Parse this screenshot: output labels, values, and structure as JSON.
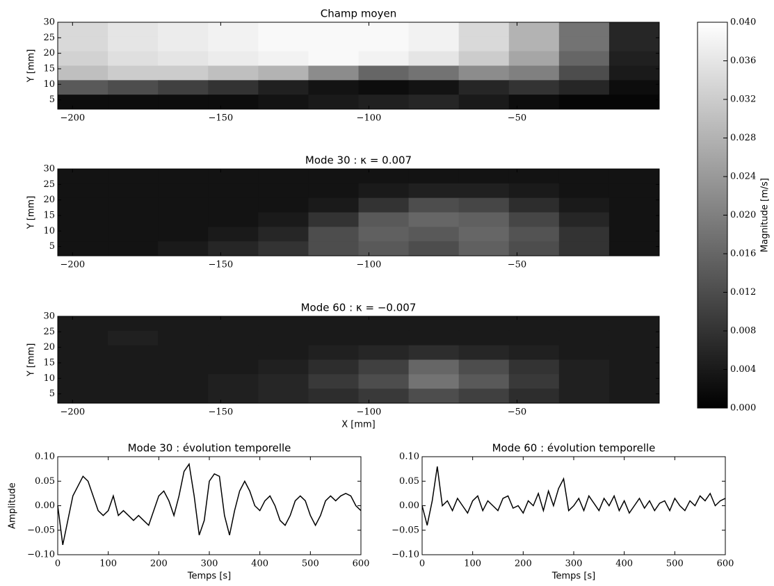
{
  "chart_data": [
    {
      "type": "heatmap",
      "title": "Champ moyen",
      "ylabel": "Y [mm]",
      "xlim": [
        -205,
        -2
      ],
      "ylim": [
        2,
        30
      ],
      "xticks": [
        {
          "value": -200,
          "label": "−200"
        },
        {
          "value": -150,
          "label": "−150"
        },
        {
          "value": -100,
          "label": "−100"
        },
        {
          "value": -50,
          "label": "−50"
        }
      ],
      "yticks": [
        5,
        10,
        15,
        20,
        25,
        30
      ],
      "z": [
        [
          0.034,
          0.036,
          0.037,
          0.038,
          0.039,
          0.039,
          0.039,
          0.038,
          0.034,
          0.028,
          0.018,
          0.006
        ],
        [
          0.034,
          0.036,
          0.037,
          0.038,
          0.039,
          0.039,
          0.039,
          0.038,
          0.034,
          0.028,
          0.018,
          0.006
        ],
        [
          0.033,
          0.035,
          0.036,
          0.037,
          0.038,
          0.039,
          0.038,
          0.036,
          0.032,
          0.026,
          0.016,
          0.005
        ],
        [
          0.03,
          0.032,
          0.032,
          0.03,
          0.028,
          0.022,
          0.016,
          0.018,
          0.022,
          0.02,
          0.012,
          0.004
        ],
        [
          0.014,
          0.012,
          0.01,
          0.008,
          0.005,
          0.003,
          0.002,
          0.003,
          0.006,
          0.008,
          0.006,
          0.002
        ],
        [
          0.002,
          0.002,
          0.002,
          0.002,
          0.003,
          0.004,
          0.005,
          0.006,
          0.004,
          0.002,
          0.001,
          0.001
        ]
      ]
    },
    {
      "type": "heatmap",
      "title": "Mode 30 : κ = 0.007",
      "ylabel": "Y [mm]",
      "xlim": [
        -205,
        -2
      ],
      "ylim": [
        2,
        30
      ],
      "xticks": [
        {
          "value": -200,
          "label": "−200"
        },
        {
          "value": -150,
          "label": "−150"
        },
        {
          "value": -100,
          "label": "−100"
        },
        {
          "value": -50,
          "label": "−50"
        }
      ],
      "yticks": [
        5,
        10,
        15,
        20,
        25,
        30
      ],
      "z": [
        [
          0.003,
          0.003,
          0.003,
          0.003,
          0.003,
          0.003,
          0.003,
          0.003,
          0.003,
          0.003,
          0.003,
          0.003
        ],
        [
          0.003,
          0.003,
          0.003,
          0.003,
          0.003,
          0.003,
          0.004,
          0.005,
          0.005,
          0.004,
          0.003,
          0.003
        ],
        [
          0.003,
          0.003,
          0.003,
          0.003,
          0.003,
          0.004,
          0.008,
          0.012,
          0.011,
          0.007,
          0.004,
          0.003
        ],
        [
          0.003,
          0.003,
          0.003,
          0.003,
          0.004,
          0.008,
          0.014,
          0.016,
          0.015,
          0.011,
          0.006,
          0.003
        ],
        [
          0.003,
          0.003,
          0.003,
          0.004,
          0.006,
          0.012,
          0.015,
          0.014,
          0.016,
          0.013,
          0.008,
          0.003
        ],
        [
          0.003,
          0.003,
          0.004,
          0.006,
          0.008,
          0.012,
          0.014,
          0.012,
          0.015,
          0.012,
          0.008,
          0.003
        ]
      ]
    },
    {
      "type": "heatmap",
      "title": "Mode 60 : κ = −0.007",
      "ylabel": "Y [mm]",
      "xlabel": "X [mm]",
      "xlim": [
        -205,
        -2
      ],
      "ylim": [
        2,
        30
      ],
      "xticks": [
        {
          "value": -200,
          "label": "−200"
        },
        {
          "value": -150,
          "label": "−150"
        },
        {
          "value": -100,
          "label": "−100"
        },
        {
          "value": -50,
          "label": "−50"
        }
      ],
      "yticks": [
        5,
        10,
        15,
        20,
        25,
        30
      ],
      "z": [
        [
          0.004,
          0.004,
          0.004,
          0.004,
          0.004,
          0.004,
          0.004,
          0.004,
          0.004,
          0.004,
          0.004,
          0.004
        ],
        [
          0.004,
          0.005,
          0.004,
          0.004,
          0.004,
          0.004,
          0.004,
          0.004,
          0.004,
          0.004,
          0.004,
          0.004
        ],
        [
          0.004,
          0.004,
          0.004,
          0.004,
          0.004,
          0.005,
          0.006,
          0.007,
          0.006,
          0.005,
          0.004,
          0.004
        ],
        [
          0.004,
          0.004,
          0.004,
          0.004,
          0.005,
          0.007,
          0.01,
          0.016,
          0.012,
          0.008,
          0.005,
          0.004
        ],
        [
          0.004,
          0.004,
          0.004,
          0.005,
          0.006,
          0.009,
          0.012,
          0.018,
          0.014,
          0.009,
          0.005,
          0.004
        ],
        [
          0.004,
          0.004,
          0.004,
          0.005,
          0.006,
          0.007,
          0.009,
          0.012,
          0.01,
          0.007,
          0.005,
          0.004
        ]
      ]
    },
    {
      "type": "colorbar",
      "label": "Magnitude [m/s]",
      "lim": [
        0,
        0.04
      ],
      "ticks": [
        {
          "value": 0,
          "label": "0.000"
        },
        {
          "value": 0.004,
          "label": "0.004"
        },
        {
          "value": 0.008,
          "label": "0.008"
        },
        {
          "value": 0.012,
          "label": "0.012"
        },
        {
          "value": 0.016,
          "label": "0.016"
        },
        {
          "value": 0.02,
          "label": "0.020"
        },
        {
          "value": 0.024,
          "label": "0.024"
        },
        {
          "value": 0.028,
          "label": "0.028"
        },
        {
          "value": 0.032,
          "label": "0.032"
        },
        {
          "value": 0.036,
          "label": "0.036"
        },
        {
          "value": 0.04,
          "label": "0.040"
        }
      ]
    },
    {
      "type": "line",
      "title": "Mode 30 : évolution temporelle",
      "xlabel": "Temps [s]",
      "ylabel": "Amplitude",
      "color": "#000000",
      "xlim": [
        0,
        600
      ],
      "ylim": [
        -0.1,
        0.1
      ],
      "xticks": [
        0,
        100,
        200,
        300,
        400,
        500,
        600
      ],
      "yticks": [
        {
          "value": -0.1,
          "label": "−0.10"
        },
        {
          "value": -0.05,
          "label": "−0.05"
        },
        {
          "value": 0,
          "label": "0.00"
        },
        {
          "value": 0.05,
          "label": "0.05"
        },
        {
          "value": 0.1,
          "label": "0.10"
        }
      ],
      "x": [
        0,
        10,
        20,
        30,
        40,
        50,
        60,
        70,
        80,
        90,
        100,
        110,
        120,
        130,
        140,
        150,
        160,
        170,
        180,
        190,
        200,
        210,
        220,
        230,
        240,
        250,
        260,
        270,
        280,
        290,
        300,
        310,
        320,
        330,
        340,
        350,
        360,
        370,
        380,
        390,
        400,
        410,
        420,
        430,
        440,
        450,
        460,
        470,
        480,
        490,
        500,
        510,
        520,
        530,
        540,
        550,
        560,
        570,
        580,
        590,
        600
      ],
      "values": [
        0.0,
        -0.08,
        -0.03,
        0.02,
        0.04,
        0.06,
        0.05,
        0.02,
        -0.01,
        -0.02,
        -0.01,
        0.02,
        -0.02,
        -0.01,
        -0.02,
        -0.03,
        -0.02,
        -0.03,
        -0.04,
        -0.01,
        0.02,
        0.03,
        0.01,
        -0.02,
        0.02,
        0.07,
        0.085,
        0.02,
        -0.06,
        -0.03,
        0.05,
        0.065,
        0.06,
        -0.02,
        -0.06,
        -0.01,
        0.03,
        0.05,
        0.03,
        0.0,
        -0.01,
        0.01,
        0.02,
        0.0,
        -0.03,
        -0.04,
        -0.02,
        0.01,
        0.02,
        0.01,
        -0.02,
        -0.04,
        -0.02,
        0.01,
        0.02,
        0.01,
        0.02,
        0.025,
        0.02,
        0.0,
        -0.01
      ]
    },
    {
      "type": "line",
      "title": "Mode 60 : évolution temporelle",
      "xlabel": "Temps [s]",
      "color": "#000000",
      "xlim": [
        0,
        600
      ],
      "ylim": [
        -0.1,
        0.1
      ],
      "xticks": [
        0,
        100,
        200,
        300,
        400,
        500,
        600
      ],
      "yticks": [
        {
          "value": -0.1,
          "label": "−0.10"
        },
        {
          "value": -0.05,
          "label": "−0.05"
        },
        {
          "value": 0,
          "label": "0.00"
        },
        {
          "value": 0.05,
          "label": "0.05"
        },
        {
          "value": 0.1,
          "label": "0.10"
        }
      ],
      "x": [
        0,
        10,
        20,
        30,
        40,
        50,
        60,
        70,
        80,
        90,
        100,
        110,
        120,
        130,
        140,
        150,
        160,
        170,
        180,
        190,
        200,
        210,
        220,
        230,
        240,
        250,
        260,
        270,
        280,
        290,
        300,
        310,
        320,
        330,
        340,
        350,
        360,
        370,
        380,
        390,
        400,
        410,
        420,
        430,
        440,
        450,
        460,
        470,
        480,
        490,
        500,
        510,
        520,
        530,
        540,
        550,
        560,
        570,
        580,
        590,
        600
      ],
      "values": [
        0.0,
        -0.04,
        0.01,
        0.08,
        0.0,
        0.01,
        -0.01,
        0.015,
        0.0,
        -0.015,
        0.01,
        0.02,
        -0.01,
        0.01,
        0.0,
        -0.01,
        0.015,
        0.02,
        -0.005,
        0.0,
        -0.015,
        0.01,
        0.0,
        0.025,
        -0.01,
        0.03,
        0.0,
        0.035,
        0.055,
        -0.01,
        0.0,
        0.015,
        -0.01,
        0.02,
        0.005,
        -0.01,
        0.015,
        0.0,
        0.02,
        -0.01,
        0.01,
        -0.015,
        0.0,
        0.015,
        -0.005,
        0.01,
        -0.01,
        0.005,
        0.01,
        -0.01,
        0.015,
        0.0,
        -0.01,
        0.01,
        0.0,
        0.02,
        0.01,
        0.025,
        0.0,
        0.01,
        0.015
      ]
    }
  ]
}
